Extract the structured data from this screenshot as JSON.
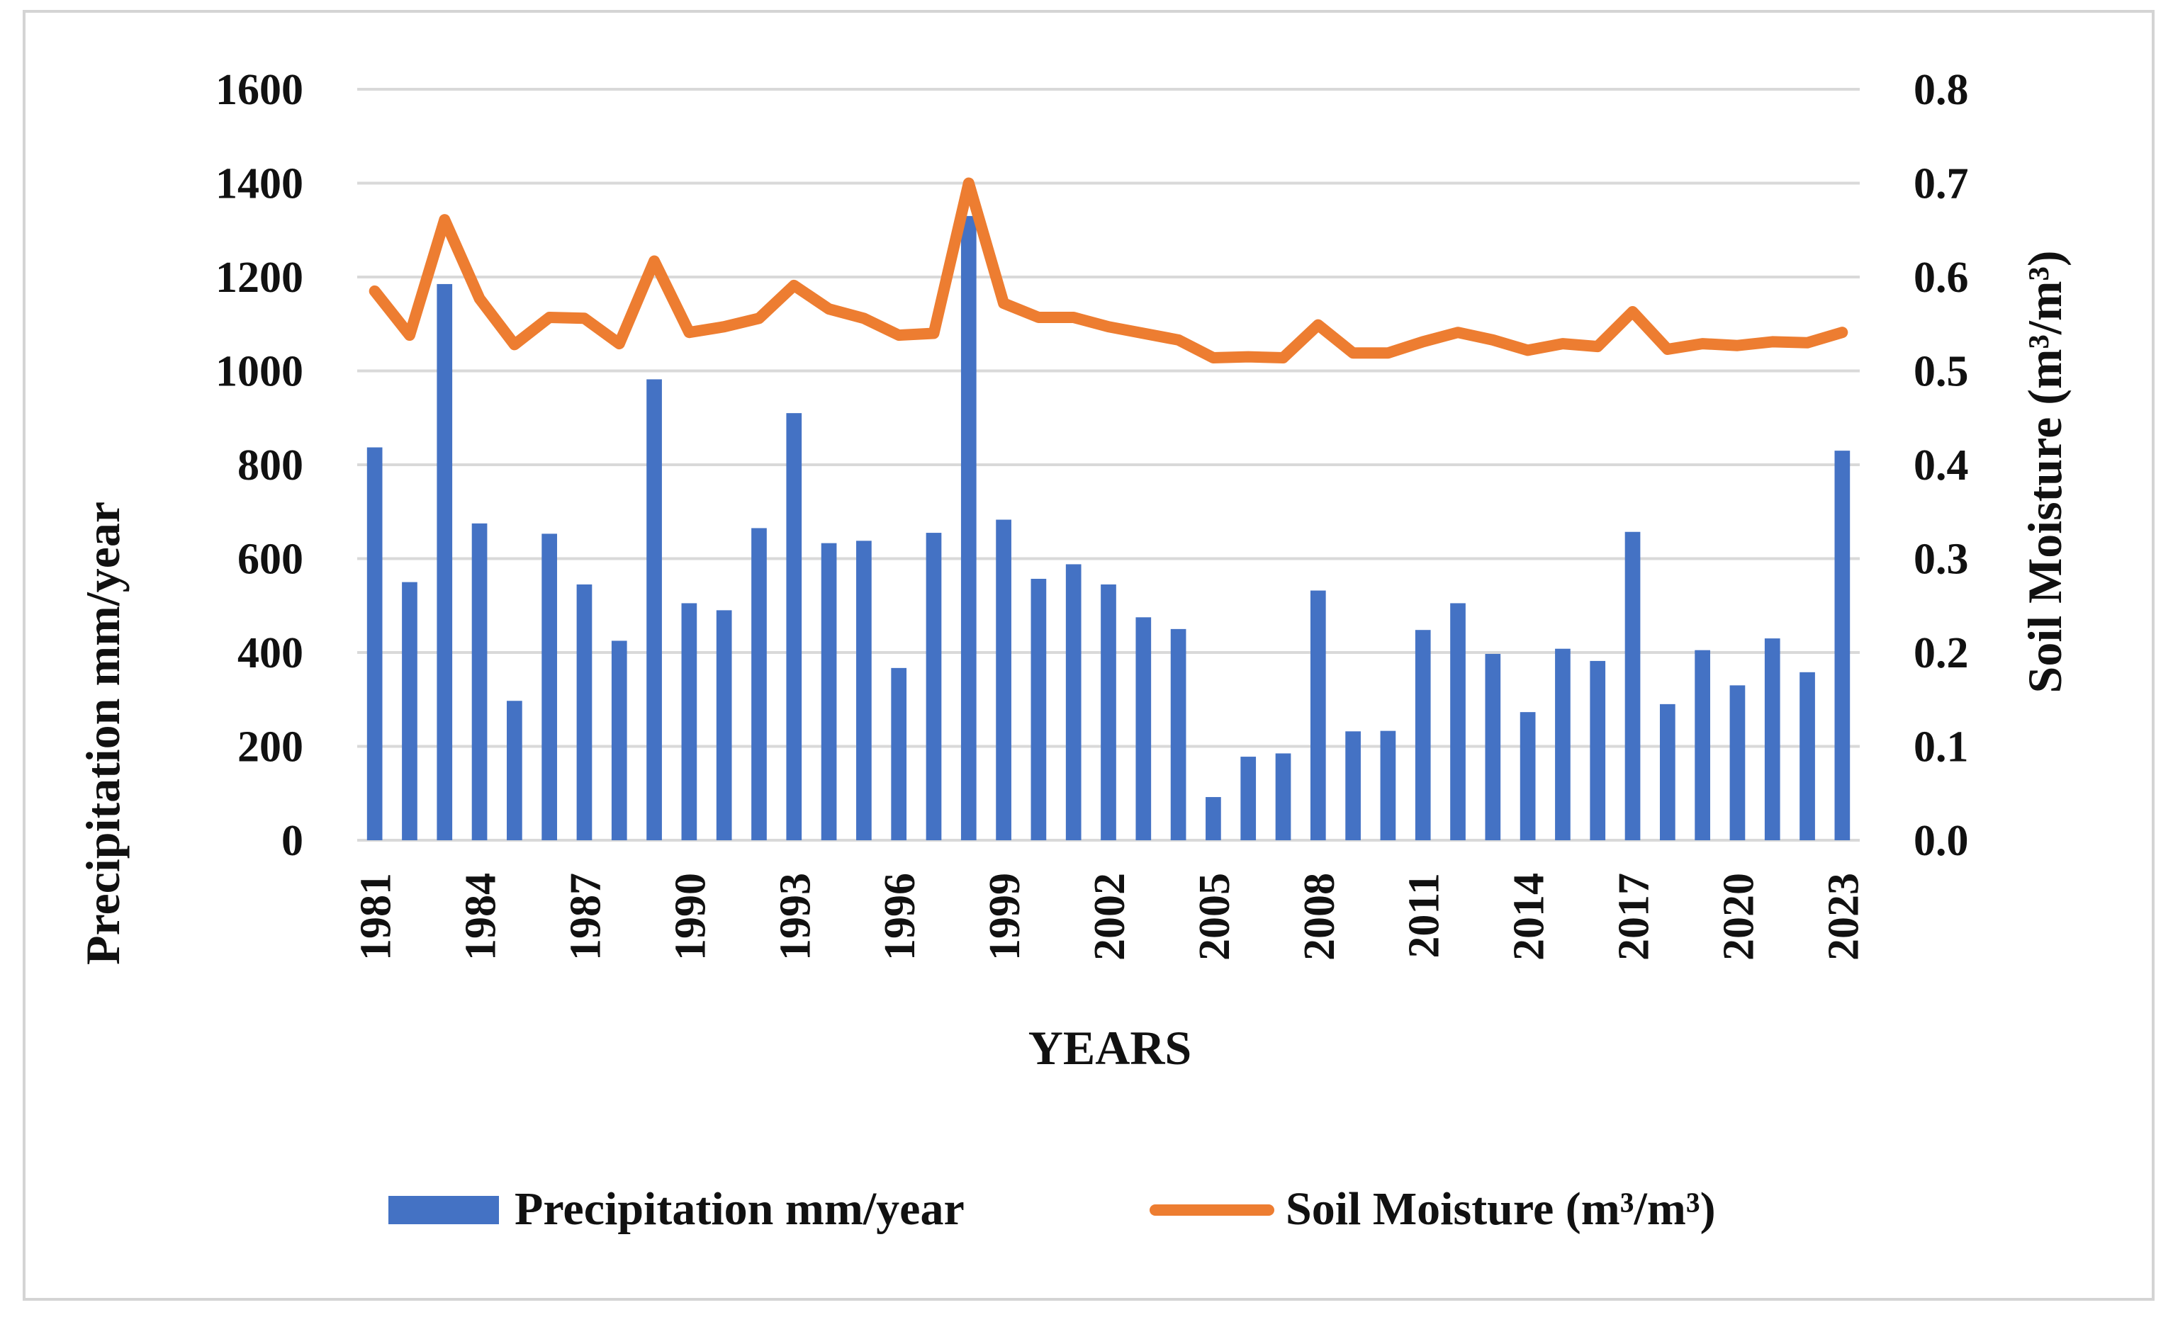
{
  "chart_data": {
    "type": "bar",
    "categories": [
      "1981",
      "1982",
      "1983",
      "1984",
      "1985",
      "1986",
      "1987",
      "1988",
      "1989",
      "1990",
      "1991",
      "1992",
      "1993",
      "1994",
      "1995",
      "1996",
      "1997",
      "1998",
      "1999",
      "2000",
      "2001",
      "2002",
      "2003",
      "2004",
      "2005",
      "2006",
      "2007",
      "2008",
      "2009",
      "2010",
      "2011",
      "2012",
      "2013",
      "2014",
      "2015",
      "2016",
      "2017",
      "2018",
      "2019",
      "2020",
      "2021",
      "2022",
      "2023"
    ],
    "x_tick_labels": [
      "1981",
      "1984",
      "1987",
      "1990",
      "1993",
      "1996",
      "1999",
      "2002",
      "2005",
      "2008",
      "2011",
      "2014",
      "2017",
      "2020",
      "2023"
    ],
    "series": [
      {
        "name": "Precipitation mm/year",
        "type": "bar",
        "axis": "left",
        "color": "#4472c4",
        "values": [
          837,
          550,
          1185,
          675,
          297,
          653,
          545,
          425,
          982,
          505,
          490,
          665,
          910,
          633,
          638,
          367,
          655,
          1330,
          683,
          557,
          588,
          545,
          475,
          450,
          92,
          178,
          185,
          532,
          232,
          233,
          448,
          505,
          397,
          273,
          408,
          382,
          657,
          290,
          405,
          330,
          430,
          358,
          830
        ]
      },
      {
        "name": "Soil Moisture (m³/m³)",
        "type": "line",
        "axis": "right",
        "color": "#ed7d31",
        "values": [
          0.585,
          0.538,
          0.661,
          0.577,
          0.528,
          0.557,
          0.556,
          0.529,
          0.617,
          0.541,
          0.547,
          0.556,
          0.591,
          0.566,
          0.556,
          0.538,
          0.54,
          0.7,
          0.572,
          0.557,
          0.557,
          0.547,
          0.54,
          0.533,
          0.514,
          0.515,
          0.514,
          0.549,
          0.519,
          0.519,
          0.531,
          0.541,
          0.533,
          0.522,
          0.529,
          0.526,
          0.563,
          0.523,
          0.529,
          0.527,
          0.531,
          0.53,
          0.541
        ]
      }
    ],
    "xlabel": "YEARS",
    "ylabel_left": "Precipitation mm/year",
    "ylabel_right": "Soil Moisture (m³/m³)",
    "ylim_left": [
      0,
      1600
    ],
    "ylim_right": [
      0,
      0.8
    ],
    "yticks_left": [
      "0",
      "200",
      "400",
      "600",
      "800",
      "1000",
      "1200",
      "1400",
      "1600"
    ],
    "yticks_right": [
      "0.0",
      "0.1",
      "0.2",
      "0.3",
      "0.4",
      "0.5",
      "0.6",
      "0.7",
      "0.8"
    ],
    "grid": true,
    "legend_position": "bottom"
  }
}
